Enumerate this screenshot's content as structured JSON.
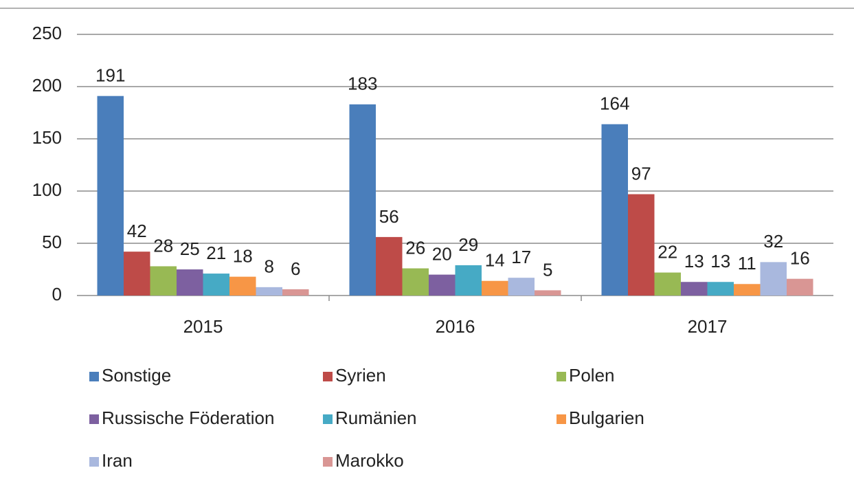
{
  "chart_data": {
    "type": "bar",
    "categories": [
      "2015",
      "2016",
      "2017"
    ],
    "series": [
      {
        "name": "Sonstige",
        "color": "#4a7ebb",
        "values": [
          191,
          183,
          164
        ]
      },
      {
        "name": "Syrien",
        "color": "#be4b48",
        "values": [
          42,
          56,
          97
        ]
      },
      {
        "name": "Polen",
        "color": "#98b954",
        "values": [
          28,
          26,
          22
        ]
      },
      {
        "name": "Russische Föderation",
        "color": "#7d60a0",
        "values": [
          25,
          20,
          13
        ]
      },
      {
        "name": "Rumänien",
        "color": "#46aac5",
        "values": [
          21,
          29,
          13
        ]
      },
      {
        "name": "Bulgarien",
        "color": "#f79646",
        "values": [
          18,
          14,
          11
        ]
      },
      {
        "name": "Iran",
        "color": "#a9b8de",
        "values": [
          8,
          17,
          32
        ]
      },
      {
        "name": "Marokko",
        "color": "#d99694",
        "values": [
          6,
          5,
          16
        ]
      }
    ],
    "ylim": [
      0,
      250
    ],
    "yticks": [
      0,
      50,
      100,
      150,
      200,
      250
    ],
    "grid": true,
    "legend": "bottom"
  }
}
